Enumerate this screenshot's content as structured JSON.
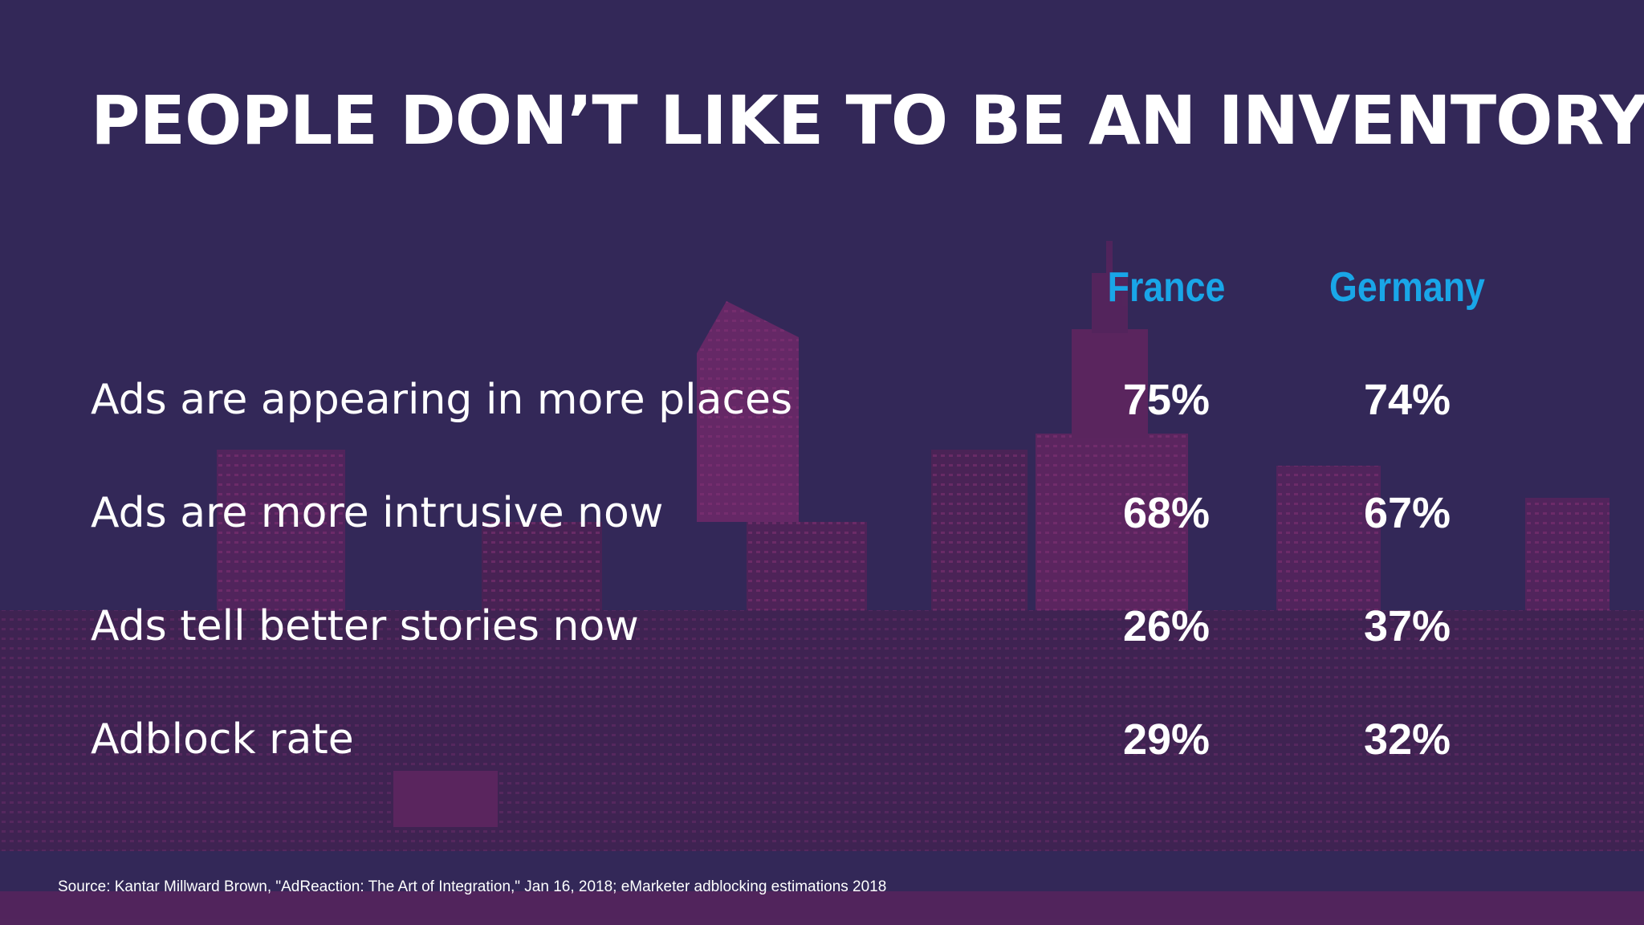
{
  "title": "PEOPLE DON’T LIKE TO BE AN INVENTORY",
  "source": "Source: Kantar Millward Brown, \"AdReaction: The Art of Integration,\" Jan 16, 2018; eMarketer adblocking estimations 2018",
  "colors": {
    "background": "#332858",
    "header_accent": "#19a6e8",
    "text": "#ffffff",
    "skyline": "#a02a7a"
  },
  "chart_data": {
    "type": "table",
    "columns": [
      "France",
      "Germany"
    ],
    "rows": [
      {
        "label": "Ads are appearing in more places",
        "values": [
          "75%",
          "74%"
        ]
      },
      {
        "label": "Ads are more intrusive now",
        "values": [
          "68%",
          "67%"
        ]
      },
      {
        "label": "Ads tell better stories now",
        "values": [
          "26%",
          "37%"
        ]
      },
      {
        "label": "Adblock rate",
        "values": [
          "29%",
          "32%"
        ]
      }
    ]
  }
}
